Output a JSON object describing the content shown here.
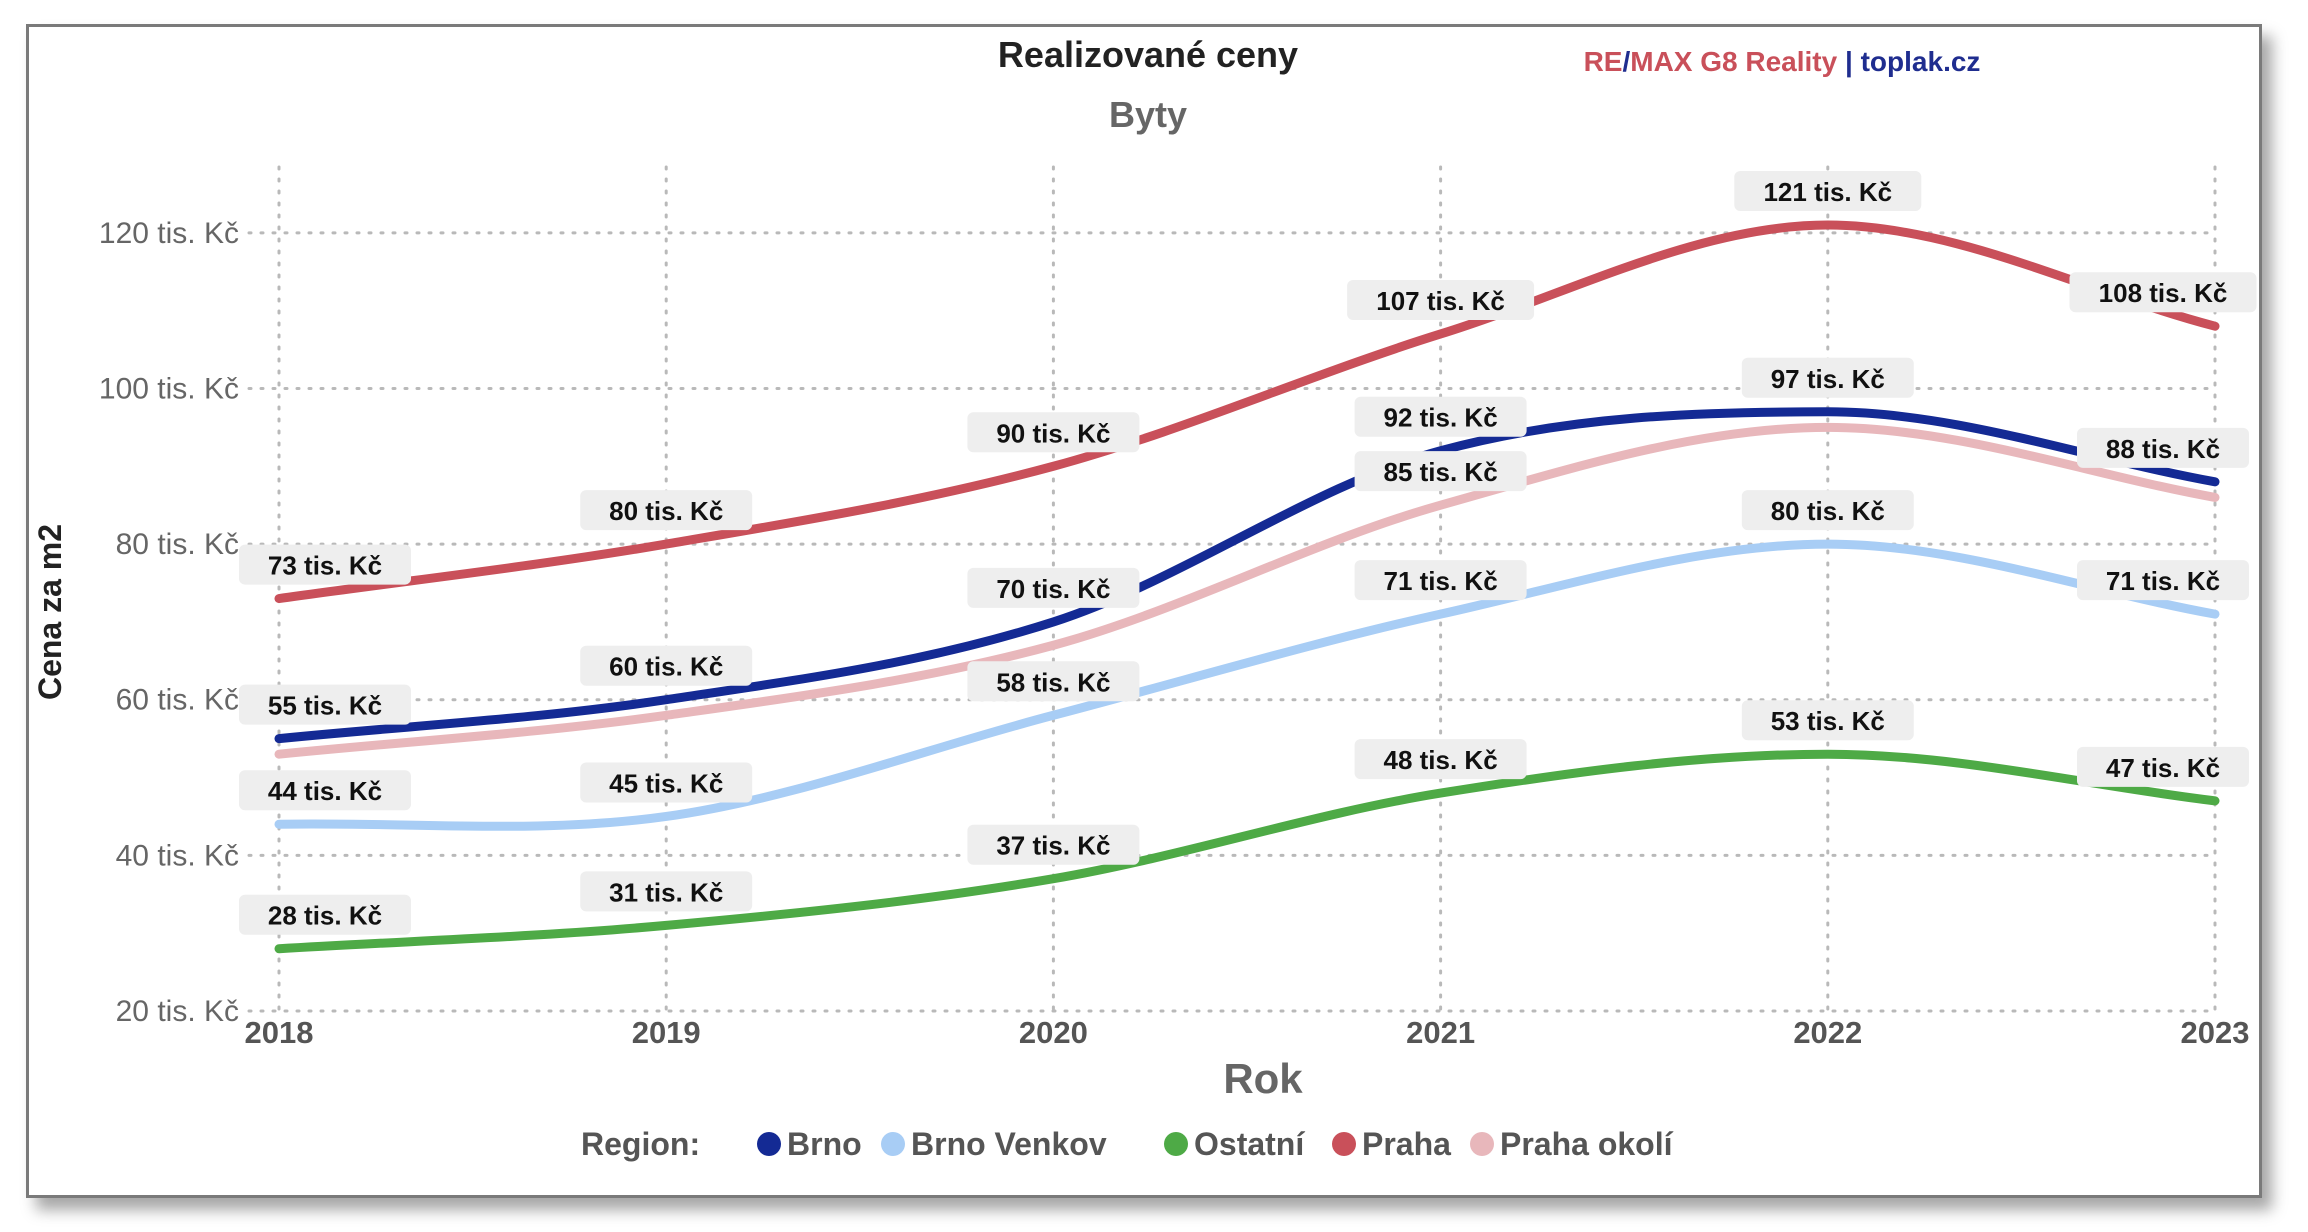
{
  "brand": {
    "part1": "RE",
    "slash": "/",
    "part2": "MAX G8 Reality",
    "sep": " | ",
    "part3": "toplak.cz",
    "color_red": "#c9505a",
    "color_blue": "#1f2d8f"
  },
  "legend_title": "Region:",
  "chart_data": {
    "type": "line",
    "title": "Realizované ceny",
    "subtitle": "Byty",
    "xlabel": "Rok",
    "ylabel": "Cena za m2",
    "x": [
      "2018",
      "2019",
      "2020",
      "2021",
      "2022",
      "2023"
    ],
    "ylim": [
      20,
      130
    ],
    "yticks": [
      20,
      40,
      60,
      80,
      100,
      120
    ],
    "ytick_labels": [
      "20 tis. Kč",
      "40 tis. Kč",
      "60 tis. Kč",
      "80 tis. Kč",
      "100 tis. Kč",
      "120 tis. Kč"
    ],
    "grid": true,
    "legend_position": "bottom",
    "series": [
      {
        "name": "Brno",
        "color": "#142a94",
        "values": [
          55,
          60,
          70,
          92,
          97,
          88
        ],
        "labels": [
          "55 tis. Kč",
          "60 tis. Kč",
          "70 tis. Kč",
          "92 tis. Kč",
          "97 tis. Kč",
          "88 tis. Kč"
        ]
      },
      {
        "name": "Brno Venkov",
        "color": "#a8cdf5",
        "values": [
          44,
          45,
          58,
          71,
          80,
          71
        ],
        "labels": [
          "44 tis. Kč",
          "45 tis. Kč",
          "58 tis. Kč",
          "71 tis. Kč",
          "80 tis. Kč",
          "71 tis. Kč"
        ]
      },
      {
        "name": "Ostatní",
        "color": "#4eaa46",
        "values": [
          28,
          31,
          37,
          48,
          53,
          47
        ],
        "labels": [
          "28 tis. Kč",
          "31 tis. Kč",
          "37 tis. Kč",
          "48 tis. Kč",
          "53 tis. Kč",
          "47 tis. Kč"
        ]
      },
      {
        "name": "Praha",
        "color": "#c9505a",
        "values": [
          73,
          80,
          90,
          107,
          121,
          108
        ],
        "labels": [
          "73 tis. Kč",
          "80 tis. Kč",
          "90 tis. Kč",
          "107 tis. Kč",
          "121 tis. Kč",
          "108 tis. Kč"
        ]
      },
      {
        "name": "Praha okolí",
        "color": "#e8b7bb",
        "values": [
          53,
          58,
          67,
          85,
          95,
          86
        ],
        "labels": [
          "",
          "",
          "",
          "85 tis. Kč",
          "",
          ""
        ]
      }
    ]
  }
}
